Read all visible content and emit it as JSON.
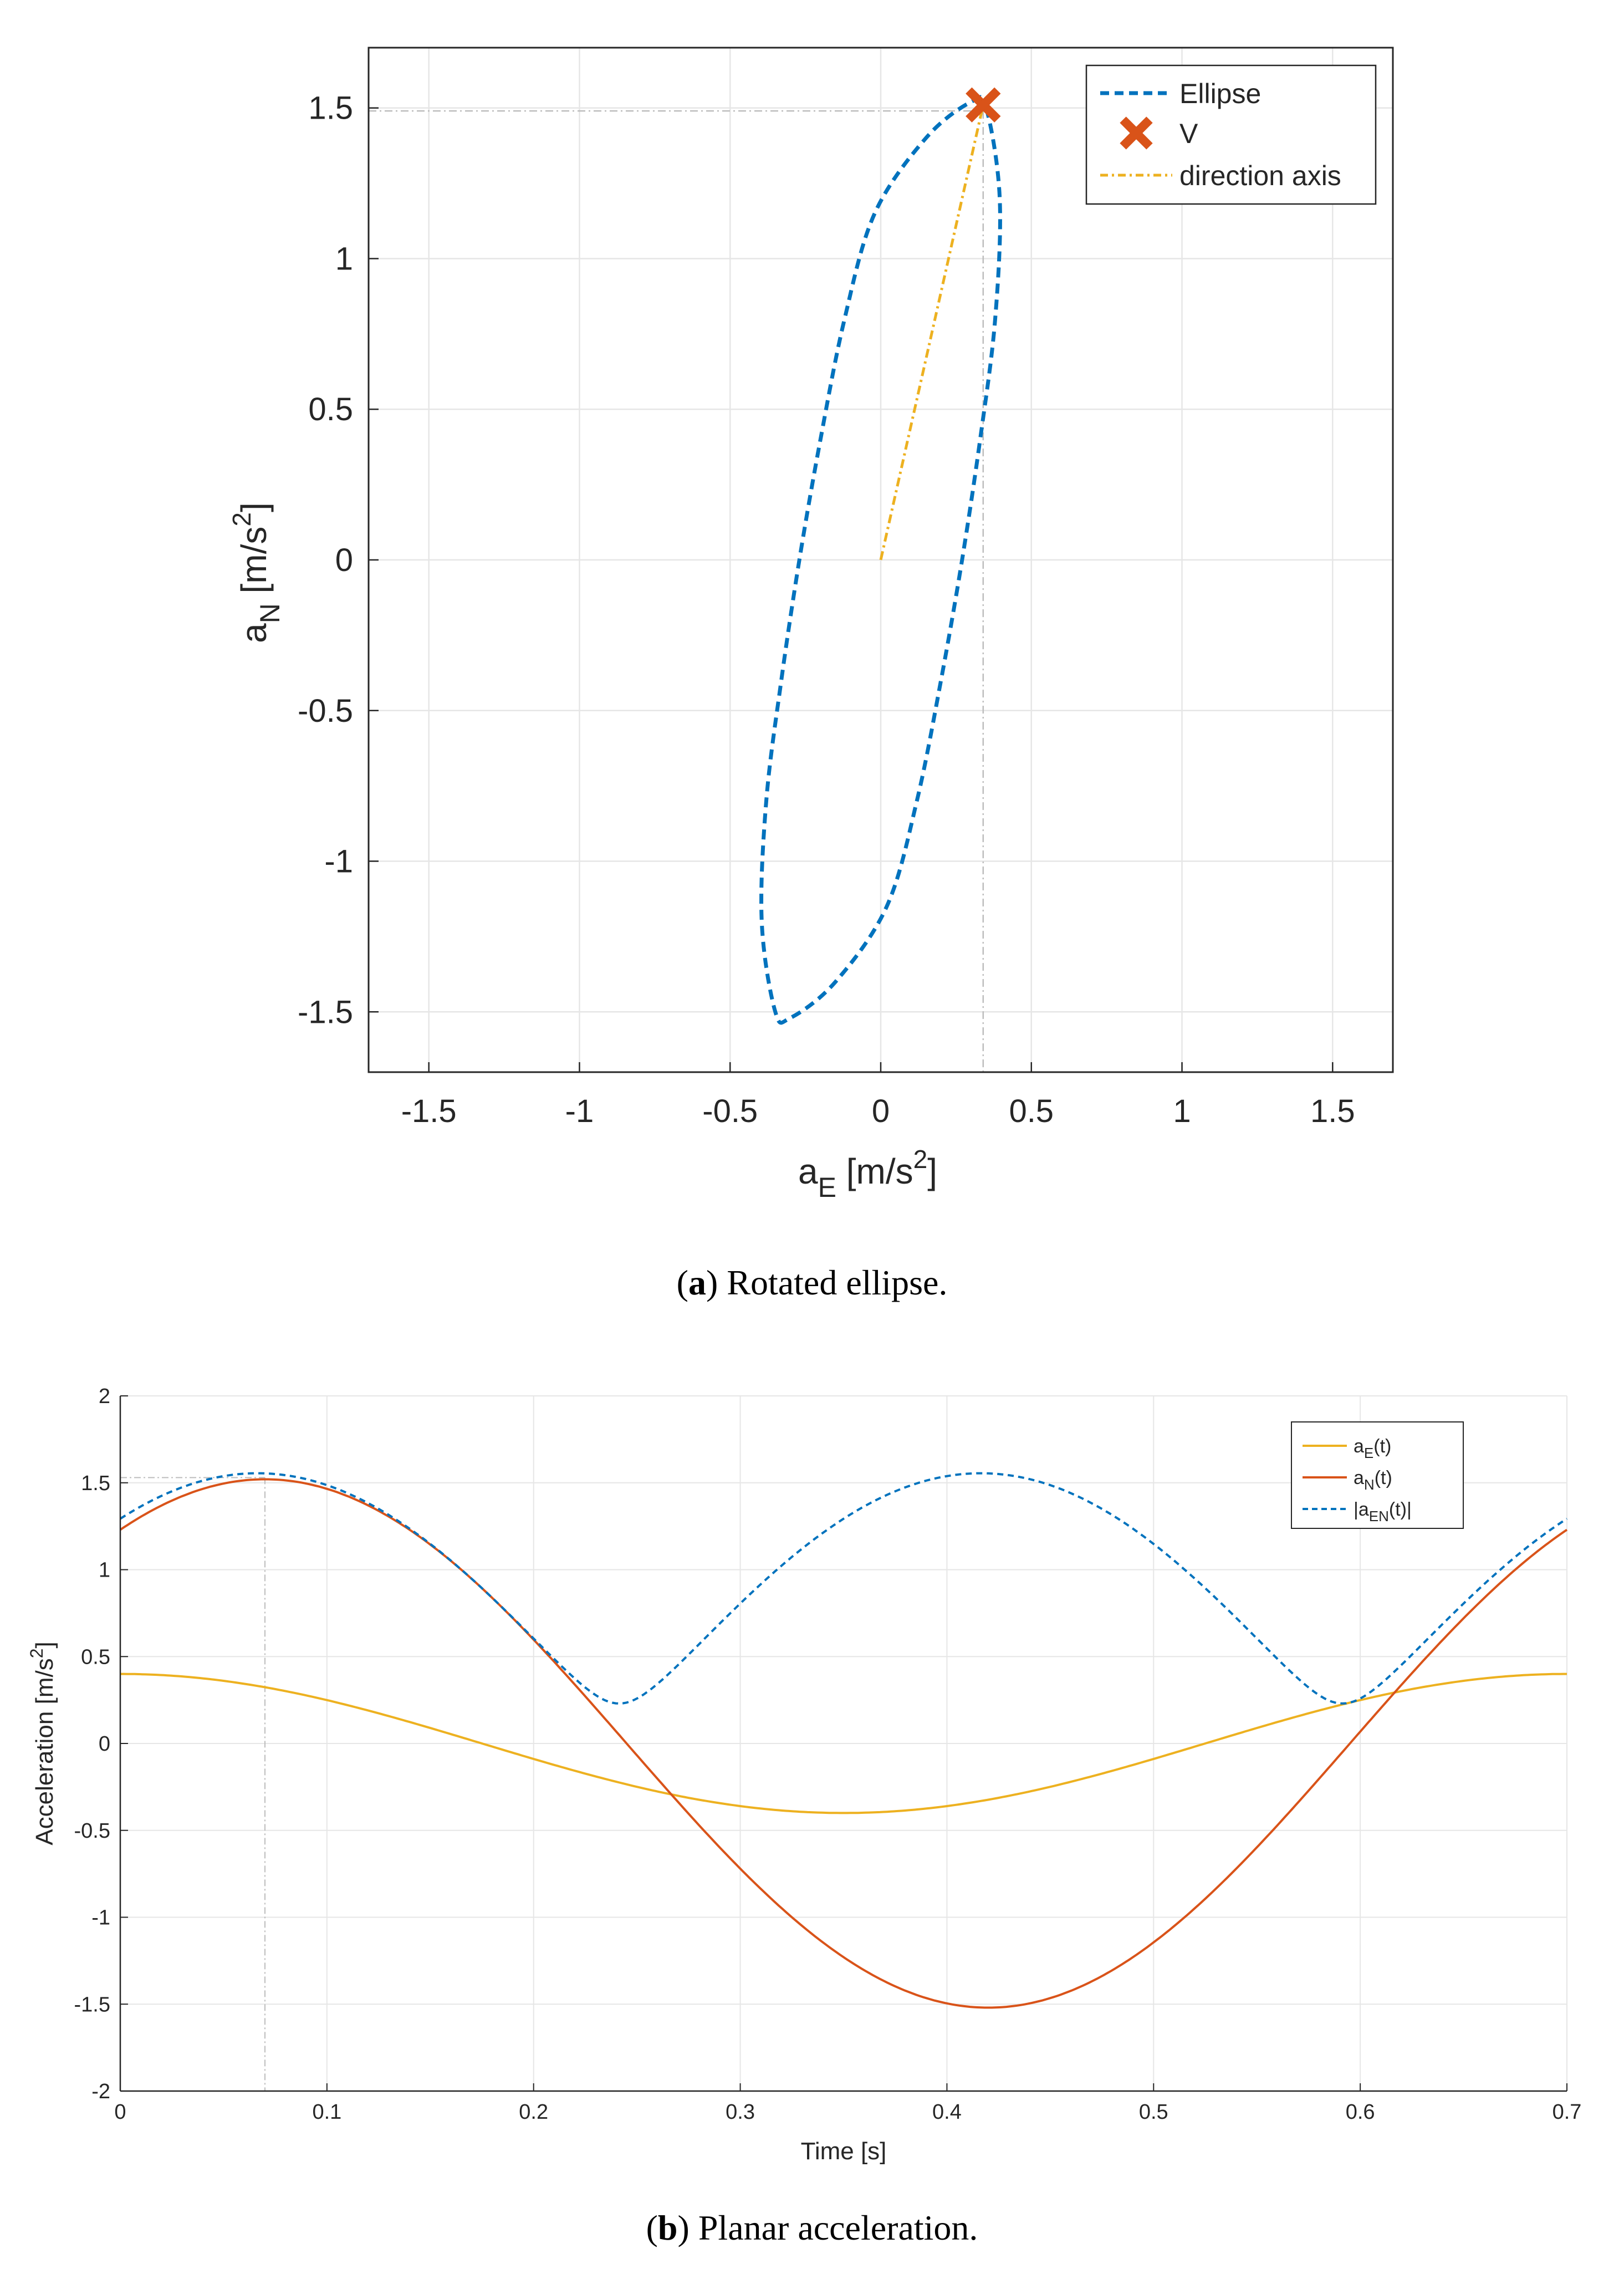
{
  "figures": [
    {
      "caption_letter": "a",
      "caption_text": ") Rotated ellipse.",
      "caption_paren": "("
    },
    {
      "caption_letter": "b",
      "caption_text": ") Planar acceleration.",
      "caption_paren": "("
    }
  ],
  "chart_data": [
    {
      "type": "line",
      "xlabel_main": "a",
      "xlabel_sub": "E",
      "xlabel_unit": " [m/s",
      "xlabel_sup": "2",
      "xlabel_close": "]",
      "ylabel_main": "a",
      "ylabel_sub": "N",
      "ylabel_unit": " [m/s",
      "ylabel_sup": "2",
      "ylabel_close": "]",
      "xlim": [
        -1.7,
        1.7
      ],
      "ylim": [
        -1.7,
        1.7
      ],
      "xticks": [
        -1.5,
        -1,
        -0.5,
        0,
        0.5,
        1,
        1.5
      ],
      "xtick_labels": [
        "-1.5",
        "-1",
        "-0.5",
        "0",
        "0.5",
        "1",
        "1.5"
      ],
      "yticks": [
        -1.5,
        -1,
        -0.5,
        0,
        0.5,
        1,
        1.5
      ],
      "ytick_labels": [
        "-1.5",
        "-1",
        "-0.5",
        "0",
        "0.5",
        "1",
        "1.5"
      ],
      "grid": true,
      "legend_position": "top-right",
      "series": [
        {
          "name": "Ellipse",
          "style": "dashed",
          "color": "#0072BD",
          "points": [
            [
              0.35,
              1.5
            ],
            [
              0.395,
              1.2
            ],
            [
              0.38,
              0.8
            ],
            [
              0.33,
              0.4
            ],
            [
              0.27,
              0.0
            ],
            [
              0.2,
              -0.4
            ],
            [
              0.12,
              -0.8
            ],
            [
              0.02,
              -1.15
            ],
            [
              -0.15,
              -1.4
            ],
            [
              -0.3,
              -1.52
            ],
            [
              -0.35,
              -1.5
            ],
            [
              -0.395,
              -1.2
            ],
            [
              -0.38,
              -0.8
            ],
            [
              -0.33,
              -0.4
            ],
            [
              -0.27,
              0.0
            ],
            [
              -0.2,
              0.4
            ],
            [
              -0.12,
              0.8
            ],
            [
              -0.02,
              1.15
            ],
            [
              0.15,
              1.4
            ],
            [
              0.3,
              1.52
            ],
            [
              0.35,
              1.5
            ]
          ]
        },
        {
          "name": "V",
          "style": "cross-marker",
          "color": "#D95319",
          "points": [
            [
              0.34,
              1.51
            ]
          ]
        },
        {
          "name": "direction axis",
          "style": "dash-dot",
          "color": "#EDB120",
          "points": [
            [
              0,
              0
            ],
            [
              0.34,
              1.51
            ]
          ]
        }
      ],
      "reference_lines": {
        "x": 0.34,
        "y": 1.49,
        "color": "#bdbdbd"
      }
    },
    {
      "type": "line",
      "xlabel": "Time [s]",
      "ylabel_main": "Acceleration [m/s",
      "ylabel_sup": "2",
      "ylabel_close": "]",
      "xlim": [
        0,
        0.7
      ],
      "ylim": [
        -2,
        2
      ],
      "xticks": [
        0,
        0.1,
        0.2,
        0.3,
        0.4,
        0.5,
        0.6,
        0.7
      ],
      "xtick_labels": [
        "0",
        "0.1",
        "0.2",
        "0.3",
        "0.4",
        "0.5",
        "0.6",
        "0.7"
      ],
      "yticks": [
        -2,
        -1.5,
        -1,
        -0.5,
        0,
        0.5,
        1,
        1.5,
        2
      ],
      "ytick_labels": [
        "-2",
        "-1.5",
        "-1",
        "-0.5",
        "0",
        "0.5",
        "1",
        "1.5",
        "2"
      ],
      "grid": true,
      "legend_position": "top-right",
      "series": [
        {
          "name_main": "a",
          "name_sub": "E",
          "name_rest": "(t)",
          "style": "solid",
          "color": "#EDB120",
          "amplitude": 0.4,
          "period": 0.7,
          "phase_shift": 0.0
        },
        {
          "name_main": "a",
          "name_sub": "N",
          "name_rest": "(t)",
          "style": "solid",
          "color": "#D95319",
          "amplitude": 1.52,
          "period": 0.7,
          "phase_shift": 0.07
        },
        {
          "name_main": "|a",
          "name_sub": "EN",
          "name_rest": "(t)|",
          "style": "dashed",
          "color": "#0072BD",
          "derived": "magnitude"
        }
      ],
      "reference_lines": {
        "x": 0.07,
        "y": 1.53,
        "color": "#bdbdbd"
      }
    }
  ]
}
